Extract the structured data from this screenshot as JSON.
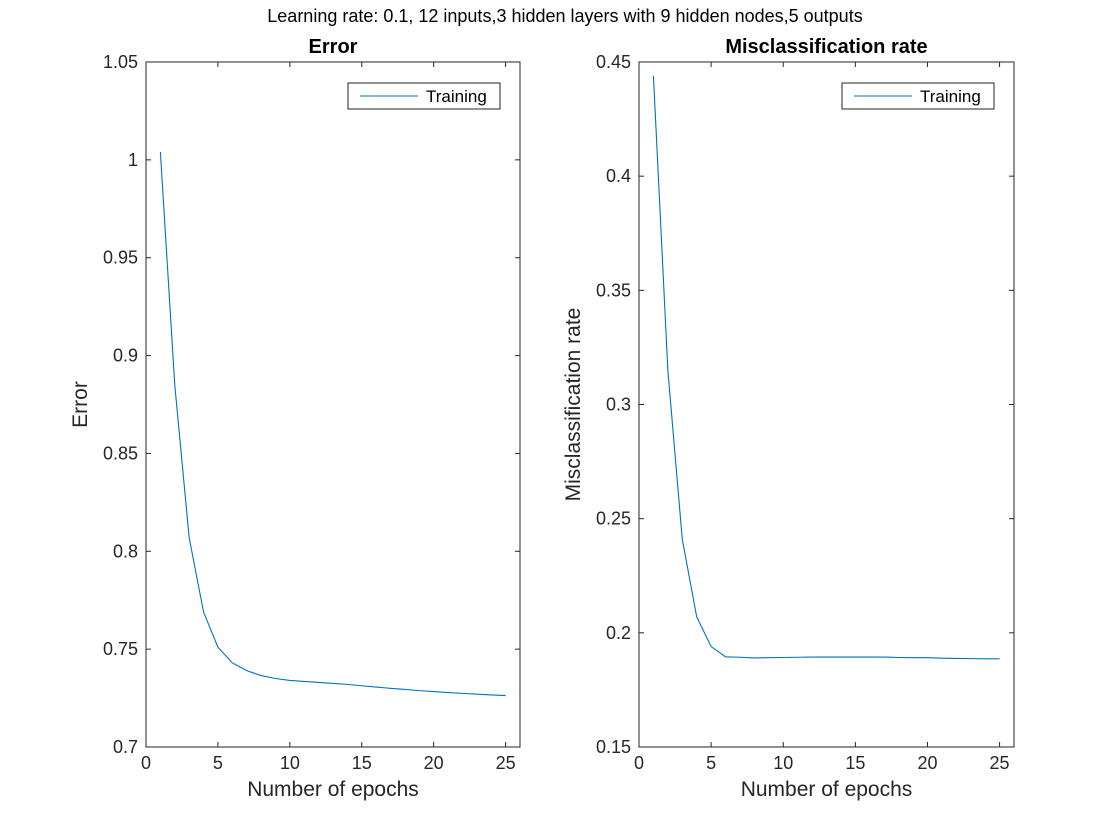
{
  "figure": {
    "suptitle": "Learning rate: 0.1, 12 inputs,3 hidden layers with 9 hidden nodes,5 outputs"
  },
  "chart_data": [
    {
      "type": "line",
      "title": "Error",
      "xlabel": "Number of epochs",
      "ylabel": "Error",
      "xlim": [
        0,
        26
      ],
      "ylim": [
        0.7,
        1.05
      ],
      "xticks": [
        0,
        5,
        10,
        15,
        20,
        25
      ],
      "xtick_labels": [
        "0",
        "5",
        "10",
        "15",
        "20",
        "25"
      ],
      "yticks": [
        0.7,
        0.75,
        0.8,
        0.85,
        0.9,
        0.95,
        1,
        1.05
      ],
      "ytick_labels": [
        "0.7",
        "0.75",
        "0.8",
        "0.85",
        "0.9",
        "0.95",
        "1",
        "1.05"
      ],
      "grid": false,
      "legend_position": "top-right",
      "series": [
        {
          "name": "Training",
          "color": "#0072bd",
          "x": [
            1,
            2,
            3,
            4,
            5,
            6,
            7,
            8,
            9,
            10,
            11,
            12,
            13,
            14,
            15,
            16,
            17,
            18,
            19,
            20,
            21,
            22,
            23,
            24,
            25
          ],
          "y": [
            1.004,
            0.885,
            0.807,
            0.769,
            0.751,
            0.743,
            0.739,
            0.7365,
            0.735,
            0.734,
            0.7335,
            0.733,
            0.7325,
            0.732,
            0.7313,
            0.7306,
            0.73,
            0.7294,
            0.7288,
            0.7283,
            0.7278,
            0.7274,
            0.727,
            0.7266,
            0.7263
          ]
        }
      ]
    },
    {
      "type": "line",
      "title": "Misclassification rate",
      "xlabel": "Number of epochs",
      "ylabel": "Misclassification rate",
      "xlim": [
        0,
        26
      ],
      "ylim": [
        0.15,
        0.45
      ],
      "xticks": [
        0,
        5,
        10,
        15,
        20,
        25
      ],
      "xtick_labels": [
        "0",
        "5",
        "10",
        "15",
        "20",
        "25"
      ],
      "yticks": [
        0.15,
        0.2,
        0.25,
        0.3,
        0.35,
        0.4,
        0.45
      ],
      "ytick_labels": [
        "0.15",
        "0.2",
        "0.25",
        "0.3",
        "0.35",
        "0.4",
        "0.45"
      ],
      "grid": false,
      "legend_position": "top-right",
      "series": [
        {
          "name": "Training",
          "color": "#0072bd",
          "x": [
            1,
            2,
            3,
            4,
            5,
            6,
            7,
            8,
            9,
            10,
            11,
            12,
            13,
            14,
            15,
            16,
            17,
            18,
            19,
            20,
            21,
            22,
            23,
            24,
            25
          ],
          "y": [
            0.444,
            0.315,
            0.241,
            0.207,
            0.194,
            0.1895,
            0.1893,
            0.189,
            0.1891,
            0.1892,
            0.1893,
            0.1894,
            0.1894,
            0.1894,
            0.1894,
            0.1894,
            0.1894,
            0.1892,
            0.1891,
            0.1891,
            0.1889,
            0.1888,
            0.1887,
            0.1886,
            0.1886
          ]
        }
      ]
    }
  ]
}
